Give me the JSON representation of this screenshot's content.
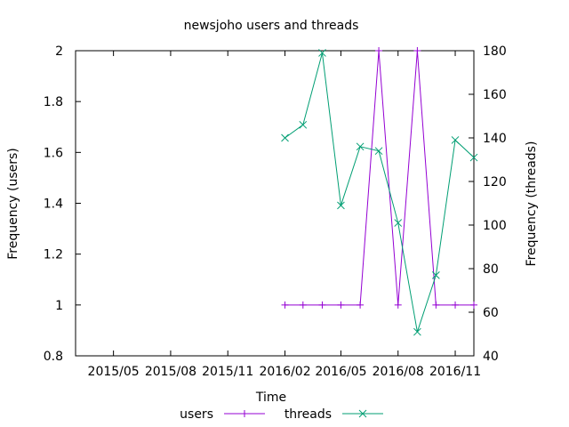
{
  "chart_data": {
    "type": "line",
    "title": "newsjoho users and threads",
    "xlabel": "Time",
    "ylabel_left": "Frequency (users)",
    "ylabel_right": "Frequency (threads)",
    "x_ticks": [
      "2015/05",
      "2015/08",
      "2015/11",
      "2016/02",
      "2016/05",
      "2016/08",
      "2016/11"
    ],
    "x_tick_dates": [
      "2015-05-01",
      "2015-08-01",
      "2015-11-01",
      "2016-02-01",
      "2016-05-01",
      "2016-08-01",
      "2016-11-01"
    ],
    "xlim": [
      "2015-03-01",
      "2016-12-01"
    ],
    "ylim_left": [
      0.8,
      2
    ],
    "yticks_left": [
      "0.8",
      "1",
      "1.2",
      "1.4",
      "1.6",
      "1.8",
      "2"
    ],
    "ylim_right": [
      40,
      180
    ],
    "yticks_right": [
      "40",
      "60",
      "80",
      "100",
      "120",
      "140",
      "160",
      "180"
    ],
    "grid": false,
    "legend_position": "bottom",
    "series": [
      {
        "name": "users",
        "axis": "left",
        "color": "#9400d3",
        "marker": "plus",
        "x": [
          "2016-02-01",
          "2016-03-01",
          "2016-04-01",
          "2016-05-01",
          "2016-06-01",
          "2016-07-01",
          "2016-08-01",
          "2016-09-01",
          "2016-10-01",
          "2016-11-01",
          "2016-12-01"
        ],
        "values": [
          1,
          1,
          1,
          1,
          1,
          2,
          1,
          2,
          1,
          1,
          1
        ]
      },
      {
        "name": "threads",
        "axis": "right",
        "color": "#009e73",
        "marker": "cross",
        "x": [
          "2016-02-01",
          "2016-03-01",
          "2016-04-01",
          "2016-05-01",
          "2016-06-01",
          "2016-07-01",
          "2016-08-01",
          "2016-09-01",
          "2016-10-01",
          "2016-11-01",
          "2016-12-01"
        ],
        "values": [
          140,
          146,
          179,
          109,
          136,
          134,
          101,
          51,
          77,
          139,
          131
        ]
      }
    ]
  }
}
